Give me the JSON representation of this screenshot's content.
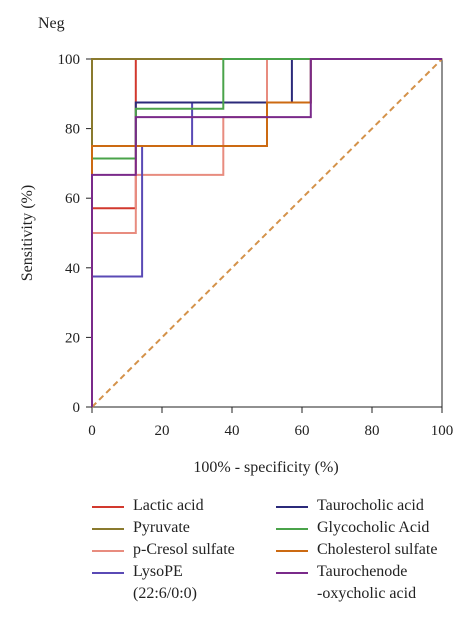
{
  "panel_label": "Neg",
  "chart_data": {
    "type": "line",
    "title": "",
    "xlabel": "100% - specificity (%)",
    "ylabel": "Sensitivity (%)",
    "xlim": [
      0,
      100
    ],
    "ylim": [
      0,
      100
    ],
    "xticks": [
      0,
      20,
      40,
      60,
      80,
      100
    ],
    "yticks": [
      0,
      20,
      40,
      60,
      80,
      100
    ],
    "grid": false,
    "legend_position": "bottom",
    "reference_line": {
      "x": [
        0,
        100
      ],
      "y": [
        0,
        100
      ],
      "color": "#d4924a",
      "style": "dashed"
    },
    "series": [
      {
        "name": "Lactic acid",
        "color": "#d2392e",
        "x": [
          0,
          0,
          12.5,
          12.5,
          100
        ],
        "y": [
          0,
          57.1,
          57.1,
          100,
          100
        ]
      },
      {
        "name": "Pyruvate",
        "color": "#8a7a2e",
        "x": [
          0,
          0,
          12.5,
          100
        ],
        "y": [
          0,
          100,
          100,
          100
        ]
      },
      {
        "name": "p-Cresol sulfate",
        "color": "#e88c7f",
        "x": [
          0,
          0,
          12.5,
          12.5,
          37.5,
          37.5,
          50,
          50,
          100
        ],
        "y": [
          0,
          50,
          50,
          66.7,
          66.7,
          83.3,
          83.3,
          100,
          100
        ]
      },
      {
        "name": "LysoPE\n(22:6/0:0)",
        "color": "#5a4ab5",
        "x": [
          0,
          0,
          14.3,
          14.3,
          28.6,
          28.6,
          62.5,
          62.5,
          100
        ],
        "y": [
          0,
          37.5,
          37.5,
          75,
          75,
          87.5,
          87.5,
          100,
          100
        ]
      },
      {
        "name": "Taurocholic acid",
        "color": "#2b2a7a",
        "x": [
          0,
          0,
          12.5,
          12.5,
          57.1,
          57.1,
          100
        ],
        "y": [
          0,
          75,
          75,
          87.5,
          87.5,
          100,
          100
        ]
      },
      {
        "name": "Glycocholic Acid",
        "color": "#4aa34a",
        "x": [
          0,
          0,
          12.5,
          12.5,
          37.5,
          37.5,
          100
        ],
        "y": [
          0,
          71.4,
          71.4,
          85.7,
          85.7,
          100,
          100
        ]
      },
      {
        "name": "Cholesterol sulfate",
        "color": "#cc6a12",
        "x": [
          0,
          0,
          50,
          50,
          62.5,
          62.5,
          100
        ],
        "y": [
          0,
          75,
          75,
          87.5,
          87.5,
          100,
          100
        ]
      },
      {
        "name": "Taurochenode\n-oxycholic acid",
        "color": "#7a2a8a",
        "x": [
          0,
          0,
          12.5,
          12.5,
          62.5,
          62.5,
          100
        ],
        "y": [
          0,
          66.7,
          66.7,
          83.3,
          83.3,
          100,
          100
        ]
      }
    ]
  }
}
